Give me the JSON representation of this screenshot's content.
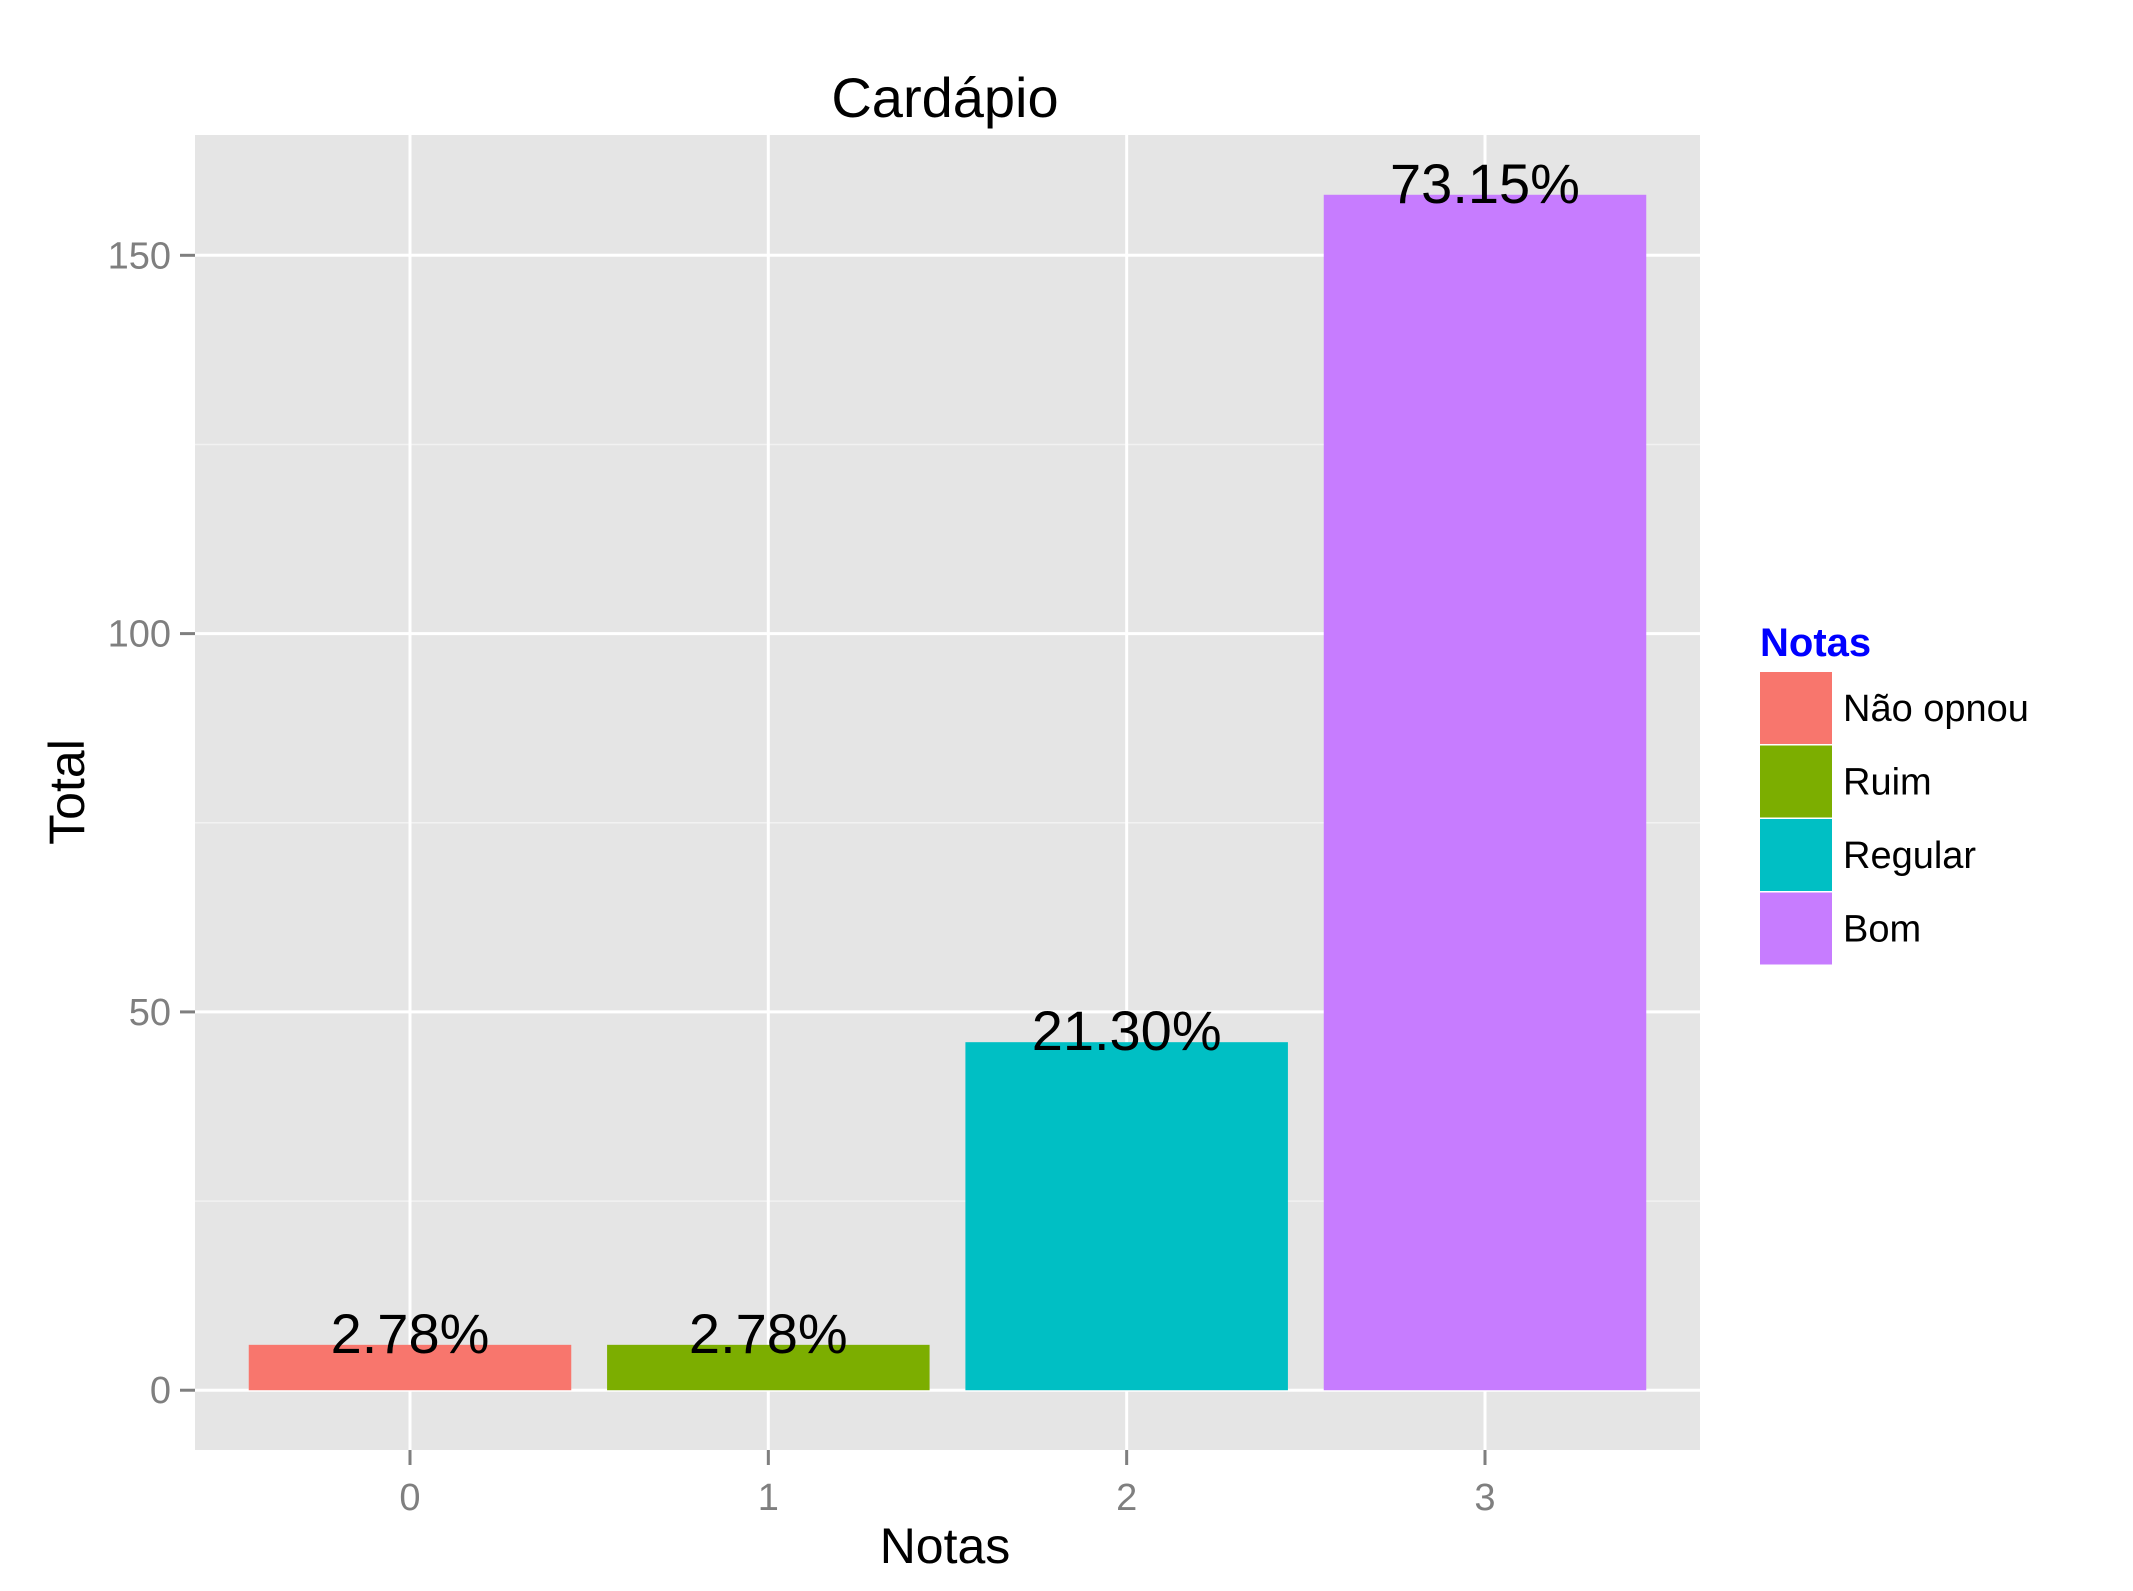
{
  "chart_data": {
    "type": "bar",
    "title": "Cardápio",
    "xlabel": "Notas",
    "ylabel": "Total",
    "categories": [
      "0",
      "1",
      "2",
      "3"
    ],
    "values": [
      6,
      6,
      46,
      158
    ],
    "labels": [
      "2.78%",
      "2.78%",
      "21.30%",
      "73.15%"
    ],
    "ylim": [
      -7.9,
      165.9
    ],
    "yticks": [
      0,
      50,
      100,
      150
    ],
    "y_minor_ticks": [
      25,
      75,
      125
    ],
    "grid": true,
    "legend": {
      "title": "Notas",
      "position": "right",
      "entries": [
        "Não opnou",
        "Ruim",
        "Regular",
        "Bom"
      ]
    },
    "colors": [
      "#F8766D",
      "#7CAE00",
      "#00BFC4",
      "#C77CFF"
    ],
    "panel_color": "#E5E5E5",
    "legend_title_color": "#0000FF"
  }
}
